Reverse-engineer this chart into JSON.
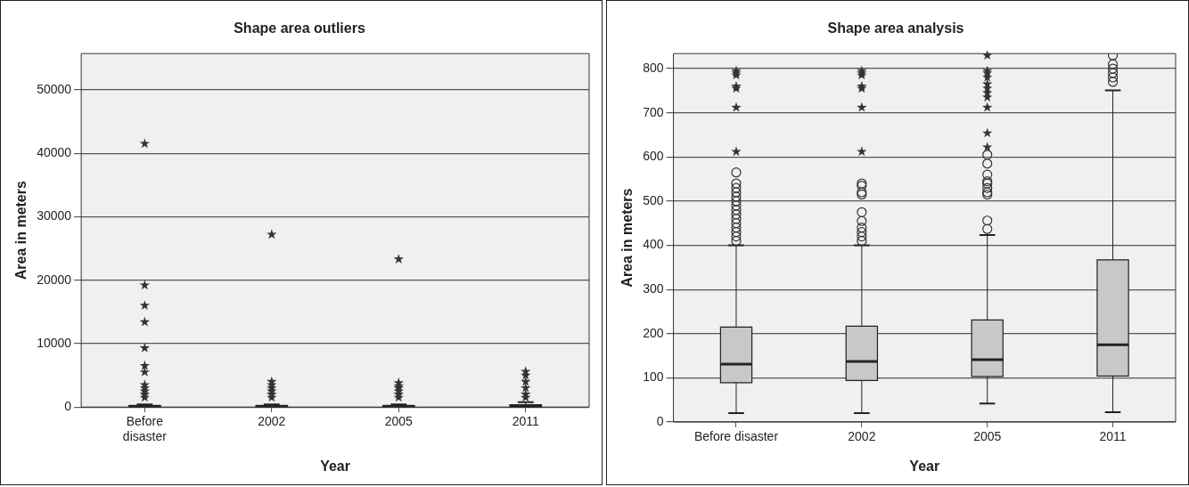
{
  "chart_data": [
    {
      "type": "box",
      "title": "Shape area outliers",
      "xlabel": "Year",
      "ylabel": "Area in meters",
      "categories": [
        "Before disaster",
        "2002",
        "2005",
        "2011"
      ],
      "ylim": [
        0,
        55700
      ],
      "yticks": [
        0,
        10000,
        20000,
        30000,
        40000,
        50000
      ],
      "grid": "y",
      "legend": false,
      "color": "#c8c8c8",
      "boxes": [
        {
          "low": 20,
          "q1": 89,
          "median": 131,
          "q3": 215,
          "high": 400,
          "outliers": [
            41500,
            19200,
            16000,
            13400,
            9300,
            6500,
            5500,
            3500,
            3000,
            2500,
            2000,
            1500
          ]
        },
        {
          "low": 20,
          "q1": 94,
          "median": 137,
          "q3": 217,
          "high": 400,
          "outliers": [
            27200,
            4000,
            3500,
            3000,
            2500,
            2000,
            1500
          ]
        },
        {
          "low": 42,
          "q1": 103,
          "median": 141,
          "q3": 231,
          "high": 423,
          "outliers": [
            23300,
            3800,
            3300,
            3000,
            2500,
            2000,
            1500
          ]
        },
        {
          "low": 22,
          "q1": 104,
          "median": 175,
          "q3": 367,
          "high": 751,
          "outliers": [
            5600,
            5000,
            4000,
            3000,
            2000,
            1500
          ]
        }
      ]
    },
    {
      "type": "box",
      "title": "Shape area analysis",
      "xlabel": "Year",
      "ylabel": "Area in meters",
      "categories": [
        "Before disaster",
        "2002",
        "2005",
        "2011"
      ],
      "ylim": [
        0,
        834
      ],
      "yticks": [
        0,
        100,
        200,
        300,
        400,
        500,
        600,
        700,
        800
      ],
      "grid": "y",
      "legend": false,
      "color": "#c8c8c8",
      "boxes": [
        {
          "low": 20,
          "q1": 89,
          "median": 131,
          "q3": 215,
          "high": 400,
          "outliers": [
            410,
            420,
            430,
            440,
            450,
            460,
            470,
            480,
            490,
            500,
            510,
            520,
            530,
            540,
            565,
            612,
            712,
            755,
            760,
            785,
            790,
            795
          ]
        },
        {
          "low": 20,
          "q1": 94,
          "median": 137,
          "q3": 217,
          "high": 400,
          "outliers": [
            410,
            420,
            430,
            440,
            455,
            475,
            515,
            520,
            535,
            540,
            612,
            712,
            755,
            760,
            785,
            790,
            795
          ]
        },
        {
          "low": 42,
          "q1": 103,
          "median": 141,
          "q3": 231,
          "high": 423,
          "outliers": [
            437,
            456,
            515,
            520,
            530,
            540,
            545,
            560,
            585,
            605,
            622,
            654,
            712,
            735,
            745,
            755,
            765,
            780,
            790,
            795,
            830
          ]
        },
        {
          "low": 22,
          "q1": 104,
          "median": 175,
          "q3": 367,
          "high": 751,
          "outliers": [
            770,
            780,
            790,
            800,
            810,
            830
          ]
        }
      ]
    }
  ]
}
